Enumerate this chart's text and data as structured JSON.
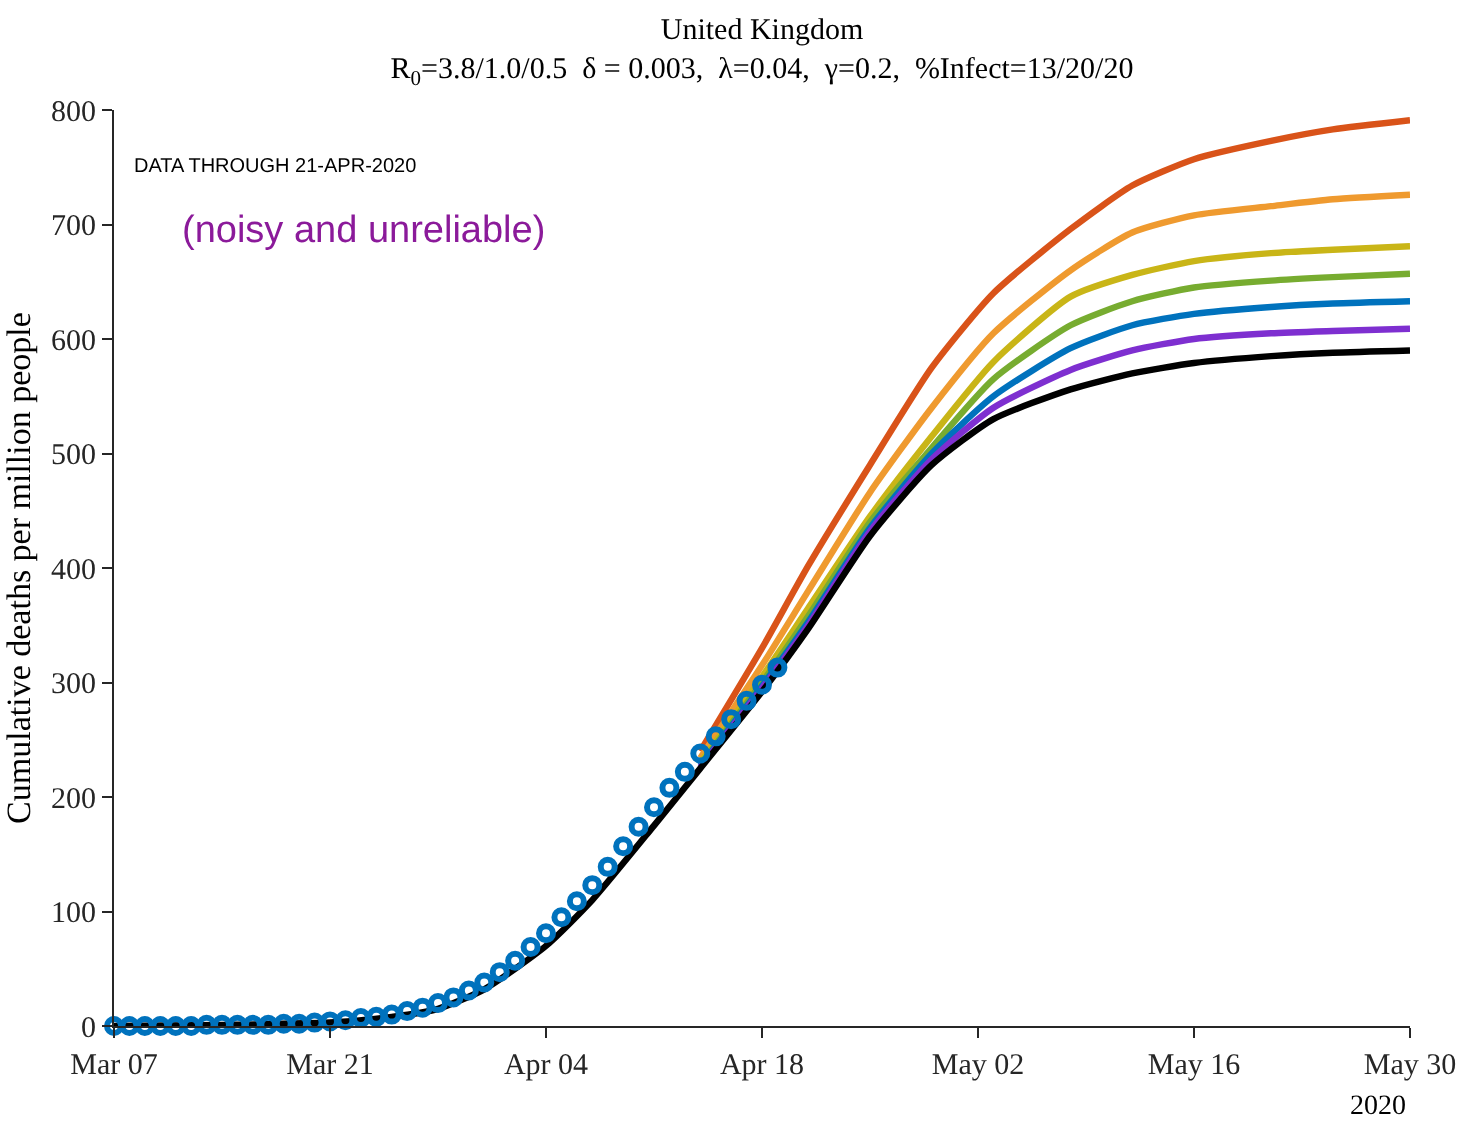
{
  "chart_data": {
    "type": "line",
    "title": "United Kingdom",
    "subtitle": "R$_{0}$=3.8/1.0/0.5  δ = 0.003,  λ=0.04,  γ=0.2,  %Infect=13/20/20",
    "ylabel": "Cumulative deaths per million people",
    "annotations": [
      "DATA THROUGH 21-APR-2020",
      "(noisy and unreliable)",
      "2020"
    ],
    "x": [
      "2020-03-07",
      "2020-03-14",
      "2020-03-21",
      "2020-03-25",
      "2020-03-28",
      "2020-03-31",
      "2020-04-04",
      "2020-04-07",
      "2020-04-11",
      "2020-04-14",
      "2020-04-18",
      "2020-04-21",
      "2020-04-25",
      "2020-04-29",
      "2020-05-03",
      "2020-05-08",
      "2020-05-12",
      "2020-05-16",
      "2020-05-21",
      "2020-05-25",
      "2020-05-30"
    ],
    "series": [
      {
        "color": "#d95319",
        "values": [
          null,
          null,
          null,
          null,
          null,
          null,
          null,
          null,
          null,
          240,
          330,
          402,
          490,
          575,
          640,
          696,
          734,
          757,
          773,
          783,
          791
        ]
      },
      {
        "color": "#ef9a2f",
        "values": [
          null,
          null,
          null,
          null,
          null,
          null,
          null,
          null,
          null,
          234,
          315,
          380,
          466,
          540,
          605,
          660,
          693,
          708,
          716,
          722,
          726
        ]
      },
      {
        "color": "#c9b517",
        "values": [
          null,
          null,
          null,
          null,
          null,
          null,
          null,
          null,
          null,
          230,
          305,
          365,
          445,
          515,
          580,
          637,
          656,
          668,
          675,
          678,
          681
        ]
      },
      {
        "color": "#77ac30",
        "values": [
          null,
          null,
          null,
          null,
          null,
          null,
          null,
          null,
          null,
          228,
          300,
          358,
          440,
          505,
          565,
          612,
          633,
          645,
          651,
          654,
          657
        ]
      },
      {
        "color": "#0072bd",
        "values": [
          null,
          null,
          null,
          null,
          null,
          null,
          null,
          null,
          null,
          227,
          297,
          353,
          435,
          500,
          550,
          592,
          612,
          622,
          628,
          631,
          633
        ]
      },
      {
        "color": "#7e2fd0",
        "values": [
          null,
          null,
          null,
          null,
          null,
          null,
          null,
          null,
          null,
          226,
          295,
          350,
          432,
          495,
          540,
          573,
          590,
          600,
          605,
          607,
          609
        ]
      },
      {
        "color": "#000000",
        "values": [
          0,
          1,
          3,
          8,
          15,
          32,
          70,
          110,
          175,
          225,
          292,
          347,
          428,
          490,
          530,
          556,
          570,
          579,
          585,
          588,
          590
        ]
      },
      {
        "type": "scatter",
        "marker": "circle",
        "color": "#0072bd",
        "x": [
          "2020-03-07",
          "2020-03-08",
          "2020-03-09",
          "2020-03-10",
          "2020-03-11",
          "2020-03-12",
          "2020-03-13",
          "2020-03-14",
          "2020-03-15",
          "2020-03-16",
          "2020-03-17",
          "2020-03-18",
          "2020-03-19",
          "2020-03-20",
          "2020-03-21",
          "2020-03-22",
          "2020-03-23",
          "2020-03-24",
          "2020-03-25",
          "2020-03-26",
          "2020-03-27",
          "2020-03-28",
          "2020-03-29",
          "2020-03-30",
          "2020-03-31",
          "2020-04-01",
          "2020-04-02",
          "2020-04-03",
          "2020-04-04",
          "2020-04-05",
          "2020-04-06",
          "2020-04-07",
          "2020-04-08",
          "2020-04-09",
          "2020-04-10",
          "2020-04-11",
          "2020-04-12",
          "2020-04-13",
          "2020-04-14",
          "2020-04-15",
          "2020-04-16",
          "2020-04-17",
          "2020-04-18",
          "2020-04-19"
        ],
        "values": [
          0,
          0,
          0,
          0,
          0,
          0,
          1,
          1,
          1,
          1,
          1,
          2,
          2,
          3,
          4,
          5,
          7,
          8,
          10,
          13,
          16,
          20,
          25,
          31,
          38,
          47,
          57,
          69,
          81,
          95,
          109,
          123,
          139,
          157,
          174,
          191,
          208,
          222,
          238,
          253,
          268,
          284,
          298,
          313
        ]
      }
    ],
    "xlim": [
      "2020-03-07",
      "2020-05-30"
    ],
    "xticks": [
      {
        "value": "2020-03-07",
        "label": "Mar 07"
      },
      {
        "value": "2020-03-21",
        "label": "Mar 21"
      },
      {
        "value": "2020-04-04",
        "label": "Apr 04"
      },
      {
        "value": "2020-04-18",
        "label": "Apr 18"
      },
      {
        "value": "2020-05-02",
        "label": "May 02"
      },
      {
        "value": "2020-05-16",
        "label": "May 16"
      },
      {
        "value": "2020-05-30",
        "label": "May 30"
      }
    ],
    "ylim": [
      0,
      800
    ],
    "yticks": [
      0,
      100,
      200,
      300,
      400,
      500,
      600,
      700,
      800
    ],
    "grid": false
  }
}
